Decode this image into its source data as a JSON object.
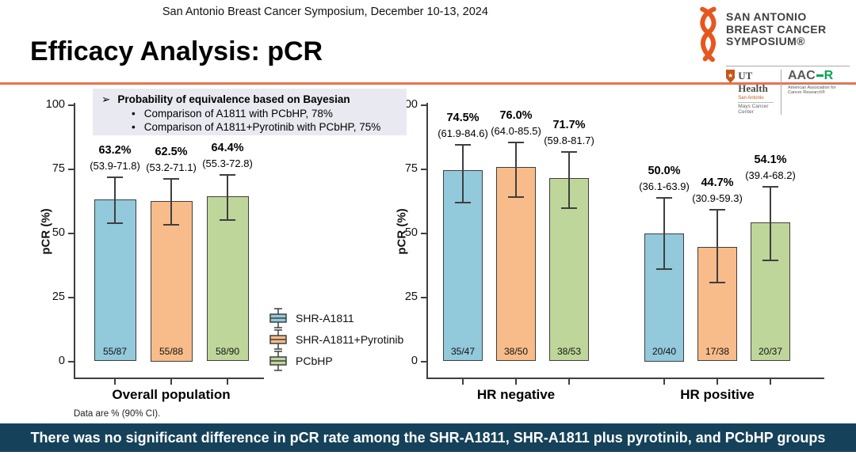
{
  "header": {
    "conference": "San Antonio Breast Cancer Symposium, December 10-13, 2024"
  },
  "title": "Efficacy Analysis: pCR",
  "logo": {
    "name_lines": [
      "SAN ANTONIO",
      "BREAST CANCER",
      "SYMPOSIUM®"
    ],
    "ribbon_color": "#E5571F",
    "ut_health": {
      "name": "UT Health",
      "campus": "San Antonio",
      "center": "Mays Cancer Center"
    },
    "aacr": {
      "part1": "AAC",
      "part2": "R",
      "subtext": "American Association for Cancer Research®",
      "green": "#00A651"
    }
  },
  "info_box": {
    "heading": "Probability of equivalence based on Bayesian",
    "bullets": [
      "Comparison of A1811 with PCbHP, 78%",
      "Comparison of A1811+Pyrotinib with PCbHP, 75%"
    ]
  },
  "legend": [
    {
      "label": "SHR-A1811",
      "color": "#92C9DB"
    },
    {
      "label": "SHR-A1811+Pyrotinib",
      "color": "#F8BC8A"
    },
    {
      "label": "PCbHP",
      "color": "#BFD69B"
    }
  ],
  "footnote": "Data are % (90% CI).",
  "banner": "There was no significant difference in pCR rate among the SHR-A1811, SHR-A1811 plus pyrotinib, and PCbHP groups",
  "chart_data": [
    {
      "type": "bar",
      "title": "",
      "ylabel": "pCR (%)",
      "ylim": [
        0,
        100
      ],
      "yticks": [
        0,
        25,
        50,
        75,
        100
      ],
      "grid": false,
      "legend_position": "right-of-chart",
      "error_bars": "90% CI",
      "categories": [
        "Overall population"
      ],
      "series": [
        {
          "name": "SHR-A1811",
          "color": "#92C9DB",
          "values": [
            63.2
          ],
          "ci_low": [
            53.9
          ],
          "ci_high": [
            71.8
          ],
          "value_labels": [
            "63.2%"
          ],
          "ci_labels": [
            "(53.9-71.8)"
          ],
          "counts": [
            "55/87"
          ]
        },
        {
          "name": "SHR-A1811+Pyrotinib",
          "color": "#F8BC8A",
          "values": [
            62.5
          ],
          "ci_low": [
            53.2
          ],
          "ci_high": [
            71.1
          ],
          "value_labels": [
            "62.5%"
          ],
          "ci_labels": [
            "(53.2-71.1)"
          ],
          "counts": [
            "55/88"
          ]
        },
        {
          "name": "PCbHP",
          "color": "#BFD69B",
          "values": [
            64.4
          ],
          "ci_low": [
            55.3
          ],
          "ci_high": [
            72.8
          ],
          "value_labels": [
            "64.4%"
          ],
          "ci_labels": [
            "(55.3-72.8)"
          ],
          "counts": [
            "58/90"
          ]
        }
      ]
    },
    {
      "type": "bar",
      "title": "",
      "ylabel": "pCR (%)",
      "ylim": [
        0,
        100
      ],
      "yticks": [
        0,
        25,
        50,
        75,
        100
      ],
      "grid": false,
      "error_bars": "90% CI",
      "categories": [
        "HR negative",
        "HR positive"
      ],
      "series": [
        {
          "name": "SHR-A1811",
          "color": "#92C9DB",
          "values": [
            74.5,
            50.0
          ],
          "ci_low": [
            61.9,
            36.1
          ],
          "ci_high": [
            84.6,
            63.9
          ],
          "value_labels": [
            "74.5%",
            "50.0%"
          ],
          "ci_labels": [
            "(61.9-84.6)",
            "(36.1-63.9)"
          ],
          "counts": [
            "35/47",
            "20/40"
          ]
        },
        {
          "name": "SHR-A1811+Pyrotinib",
          "color": "#F8BC8A",
          "values": [
            76.0,
            44.7
          ],
          "ci_low": [
            64.0,
            30.9
          ],
          "ci_high": [
            85.5,
            59.3
          ],
          "value_labels": [
            "76.0%",
            "44.7%"
          ],
          "ci_labels": [
            "(64.0-85.5)",
            "(30.9-59.3)"
          ],
          "counts": [
            "38/50",
            "17/38"
          ]
        },
        {
          "name": "PCbHP",
          "color": "#BFD69B",
          "values": [
            71.7,
            54.1
          ],
          "ci_low": [
            59.8,
            39.4
          ],
          "ci_high": [
            81.7,
            68.2
          ],
          "value_labels": [
            "71.7%",
            "54.1%"
          ],
          "ci_labels": [
            "(59.8-81.7)",
            "(39.4-68.2)"
          ],
          "counts": [
            "38/53",
            "20/37"
          ]
        }
      ]
    }
  ]
}
